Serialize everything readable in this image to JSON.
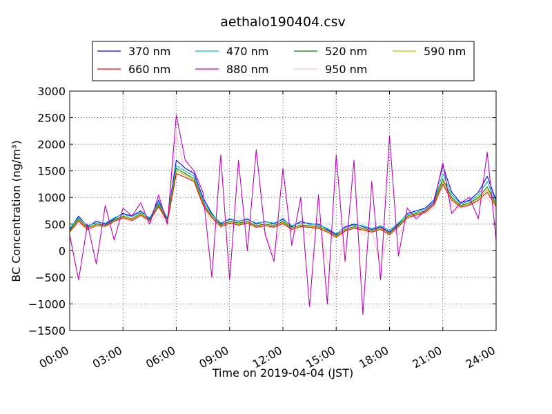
{
  "chart_data": {
    "type": "line",
    "title": "aethalo190404.csv",
    "xlabel": "Time on 2019-04-04 (JST)",
    "ylabel": "BC Concentration (ng/m³)",
    "xlim": [
      "00:00",
      "24:00"
    ],
    "ylim": [
      -1500,
      3000
    ],
    "grid": true,
    "legend_position": "top-center",
    "x_ticks": [
      "00:00",
      "03:00",
      "06:00",
      "09:00",
      "12:00",
      "15:00",
      "18:00",
      "21:00",
      "24:00"
    ],
    "y_ticks": [
      "3000",
      "2500",
      "2000",
      "1500",
      "1000",
      "500",
      "0",
      "−500",
      "−1000",
      "−1500"
    ],
    "x": [
      "00:00",
      "00:30",
      "01:00",
      "01:30",
      "02:00",
      "02:30",
      "03:00",
      "03:30",
      "04:00",
      "04:30",
      "05:00",
      "05:30",
      "06:00",
      "06:30",
      "07:00",
      "07:30",
      "08:00",
      "08:30",
      "09:00",
      "09:30",
      "10:00",
      "10:30",
      "11:00",
      "11:30",
      "12:00",
      "12:30",
      "13:00",
      "13:30",
      "14:00",
      "14:30",
      "15:00",
      "15:30",
      "16:00",
      "16:30",
      "17:00",
      "17:30",
      "18:00",
      "18:30",
      "19:00",
      "19:30",
      "20:00",
      "20:30",
      "21:00",
      "21:30",
      "22:00",
      "22:30",
      "23:00",
      "23:30",
      "24:00"
    ],
    "series": [
      {
        "name": "370 nm",
        "color": "#0000ff",
        "values": [
          400,
          650,
          450,
          550,
          500,
          600,
          700,
          650,
          750,
          600,
          950,
          600,
          1700,
          1550,
          1450,
          1000,
          700,
          500,
          600,
          550,
          600,
          500,
          550,
          500,
          600,
          450,
          550,
          500,
          500,
          400,
          300,
          450,
          500,
          450,
          400,
          450,
          350,
          500,
          700,
          750,
          800,
          950,
          1600,
          1100,
          900,
          950,
          1100,
          1400,
          950
        ]
      },
      {
        "name": "470 nm",
        "color": "#00c0c0",
        "values": [
          420,
          620,
          470,
          520,
          520,
          620,
          680,
          640,
          720,
          620,
          900,
          620,
          1600,
          1500,
          1400,
          950,
          680,
          520,
          580,
          560,
          580,
          520,
          540,
          520,
          580,
          470,
          520,
          520,
          480,
          420,
          320,
          430,
          480,
          470,
          420,
          470,
          380,
          520,
          680,
          720,
          780,
          920,
          1450,
          1050,
          880,
          930,
          1050,
          1300,
          920
        ]
      },
      {
        "name": "520 nm",
        "color": "#008000",
        "values": [
          380,
          600,
          430,
          500,
          480,
          580,
          650,
          600,
          700,
          580,
          870,
          580,
          1550,
          1450,
          1350,
          900,
          650,
          480,
          550,
          520,
          550,
          470,
          500,
          470,
          550,
          430,
          480,
          470,
          450,
          380,
          280,
          400,
          450,
          420,
          380,
          430,
          330,
          480,
          650,
          700,
          750,
          900,
          1350,
          1000,
          850,
          900,
          1000,
          1200,
          880
        ]
      },
      {
        "name": "590 nm",
        "color": "#c0c000",
        "values": [
          360,
          580,
          420,
          490,
          470,
          560,
          640,
          590,
          690,
          570,
          850,
          560,
          1500,
          1420,
          1320,
          880,
          640,
          470,
          540,
          500,
          540,
          460,
          490,
          460,
          530,
          420,
          470,
          460,
          440,
          370,
          270,
          390,
          440,
          410,
          370,
          420,
          320,
          470,
          640,
          690,
          740,
          880,
          1300,
          980,
          840,
          880,
          980,
          1150,
          860
        ]
      },
      {
        "name": "660 nm",
        "color": "#ff0000",
        "values": [
          350,
          560,
          400,
          470,
          460,
          550,
          620,
          570,
          670,
          560,
          830,
          540,
          1450,
          1380,
          1300,
          860,
          620,
          450,
          520,
          480,
          520,
          440,
          470,
          440,
          510,
          400,
          450,
          440,
          420,
          350,
          250,
          370,
          420,
          390,
          350,
          400,
          300,
          450,
          620,
          670,
          720,
          860,
          1250,
          950,
          820,
          860,
          950,
          1100,
          830
        ]
      },
      {
        "name": "880 nm",
        "color": "#c000c0",
        "values": [
          300,
          -550,
          500,
          -250,
          850,
          200,
          800,
          650,
          900,
          500,
          1050,
          500,
          2550,
          1700,
          1500,
          1100,
          -500,
          1800,
          -550,
          1700,
          0,
          1900,
          300,
          -200,
          1550,
          100,
          1000,
          -1050,
          1050,
          -1000,
          1800,
          -200,
          1700,
          -1200,
          1300,
          -550,
          2150,
          -100,
          800,
          600,
          750,
          900,
          1650,
          700,
          900,
          1000,
          600,
          1850,
          200
        ]
      },
      {
        "name": "950 nm",
        "color": "#ffc0cb",
        "values": [
          380,
          500,
          420,
          600,
          450,
          550,
          600,
          550,
          650,
          500,
          700,
          500,
          2200,
          1450,
          1500,
          900,
          500,
          600,
          400,
          650,
          450,
          600,
          350,
          -100,
          650,
          350,
          400,
          300,
          600,
          -200,
          -600,
          450,
          500,
          300,
          400,
          -300,
          450,
          300,
          600,
          650,
          700,
          800,
          1300,
          850,
          800,
          850,
          900,
          1000,
          750
        ]
      }
    ]
  }
}
